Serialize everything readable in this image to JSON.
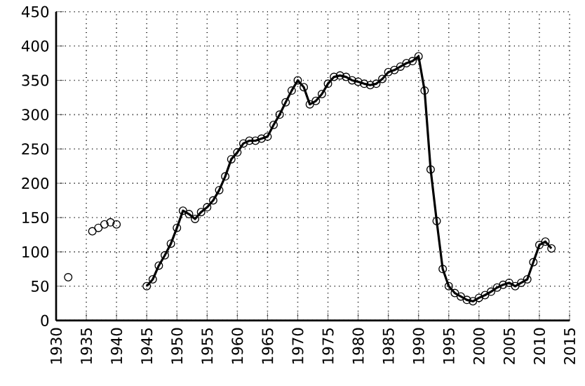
{
  "chart_data": {
    "type": "line",
    "x": [
      1945,
      1946,
      1947,
      1948,
      1949,
      1950,
      1951,
      1952,
      1953,
      1954,
      1955,
      1956,
      1957,
      1958,
      1959,
      1960,
      1961,
      1962,
      1963,
      1964,
      1965,
      1966,
      1967,
      1968,
      1969,
      1970,
      1971,
      1972,
      1973,
      1974,
      1975,
      1976,
      1977,
      1978,
      1979,
      1980,
      1981,
      1982,
      1983,
      1984,
      1985,
      1986,
      1987,
      1988,
      1989,
      1990,
      1991,
      1992,
      1993,
      1994,
      1995,
      1996,
      1997,
      1998,
      1999,
      2000,
      2001,
      2002,
      2003,
      2004,
      2005,
      2006,
      2007,
      2008,
      2009,
      2010,
      2011,
      2012
    ],
    "series": [
      {
        "type": "scatter",
        "color": "#000000",
        "x": [
          1932,
          1936,
          1937,
          1938,
          1939,
          1940
        ],
        "values": [
          63,
          130,
          135,
          140,
          143,
          140
        ]
      },
      {
        "color": "#000000",
        "values": [
          50,
          60,
          80,
          95,
          112,
          135,
          160,
          155,
          148,
          158,
          165,
          175,
          190,
          210,
          235,
          245,
          258,
          262,
          262,
          265,
          268,
          285,
          300,
          318,
          335,
          350,
          340,
          315,
          320,
          330,
          345,
          355,
          357,
          355,
          350,
          348,
          345,
          343,
          345,
          352,
          362,
          365,
          370,
          375,
          378,
          385,
          335,
          220,
          145,
          75,
          50,
          40,
          35,
          30,
          28,
          33,
          37,
          42,
          48,
          52,
          55,
          50,
          55,
          60,
          85,
          110,
          115,
          105
        ]
      }
    ],
    "xlim": [
      1930,
      2015
    ],
    "xticks": [
      1930,
      1935,
      1940,
      1945,
      1950,
      1955,
      1960,
      1965,
      1970,
      1975,
      1980,
      1985,
      1990,
      1995,
      2000,
      2005,
      2010,
      2015
    ],
    "ylim": [
      0,
      450
    ],
    "yticks": [
      0,
      50,
      100,
      150,
      200,
      250,
      300,
      350,
      400,
      450
    ],
    "grid": true,
    "marker": "circle",
    "line_style": "solid"
  }
}
